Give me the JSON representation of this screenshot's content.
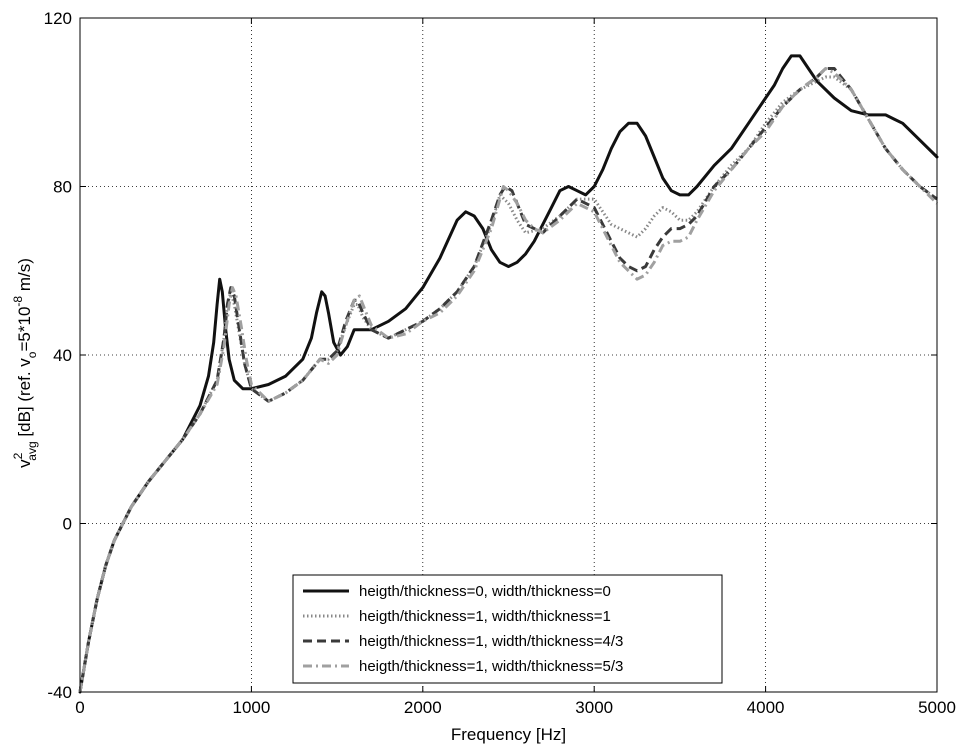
{
  "chart_data": {
    "type": "line",
    "title": "",
    "xlabel": "Frequency [Hz]",
    "ylabel": {
      "base": "v",
      "sup": "2",
      "sub": "avg",
      "mid": " [dB] (ref. v",
      "ref_sub": "o",
      "ref_eq": "=5*10",
      "ref_exp": "-8",
      "end": " m/s)"
    },
    "xlim": [
      0,
      5000
    ],
    "ylim": [
      -40,
      120
    ],
    "xticks": [
      "0",
      "1000",
      "2000",
      "3000",
      "4000",
      "5000"
    ],
    "yticks": [
      "-40",
      "0",
      "40",
      "80",
      "120"
    ],
    "grid": true,
    "legend_position": "bottom-center",
    "series": [
      {
        "name": "heigth/thickness=0, width/thickness=0",
        "color": "#111111",
        "dash": "solid",
        "x": [
          0,
          50,
          100,
          150,
          200,
          250,
          300,
          400,
          500,
          600,
          700,
          750,
          780,
          800,
          815,
          830,
          850,
          870,
          900,
          950,
          1000,
          1100,
          1200,
          1300,
          1350,
          1380,
          1410,
          1430,
          1450,
          1480,
          1520,
          1560,
          1600,
          1650,
          1700,
          1800,
          1900,
          2000,
          2100,
          2200,
          2250,
          2300,
          2350,
          2400,
          2450,
          2500,
          2550,
          2600,
          2650,
          2700,
          2750,
          2800,
          2850,
          2900,
          2950,
          3000,
          3050,
          3100,
          3150,
          3200,
          3250,
          3300,
          3350,
          3400,
          3450,
          3500,
          3550,
          3600,
          3700,
          3800,
          3900,
          4000,
          4050,
          4100,
          4150,
          4180,
          4200,
          4250,
          4300,
          4400,
          4500,
          4600,
          4700,
          4750,
          4800,
          4900,
          5000
        ],
        "y": [
          -40,
          -28,
          -18,
          -10,
          -4,
          0,
          4,
          10,
          15,
          20,
          28,
          35,
          43,
          52,
          58,
          55,
          46,
          39,
          34,
          32,
          32,
          33,
          35,
          39,
          44,
          50,
          55,
          54,
          50,
          43,
          40,
          42,
          46,
          46,
          46,
          48,
          51,
          56,
          63,
          72,
          74,
          73,
          70,
          65,
          62,
          61,
          62,
          64,
          67,
          71,
          75,
          79,
          80,
          79,
          78,
          80,
          84,
          89,
          93,
          95,
          95,
          92,
          87,
          82,
          79,
          78,
          78,
          80,
          85,
          89,
          95,
          101,
          104,
          108,
          111,
          111,
          111,
          108,
          105,
          101,
          98,
          97,
          97,
          96,
          95,
          91,
          87
        ]
      },
      {
        "name": "heigth/thickness=1, width/thickness=1",
        "color": "#888888",
        "dash": "dotted",
        "x": [
          0,
          50,
          100,
          150,
          200,
          250,
          300,
          400,
          500,
          600,
          700,
          800,
          840,
          860,
          880,
          900,
          930,
          960,
          1000,
          1100,
          1200,
          1300,
          1400,
          1450,
          1500,
          1550,
          1600,
          1620,
          1650,
          1700,
          1800,
          1900,
          2000,
          2100,
          2200,
          2300,
          2400,
          2450,
          2500,
          2550,
          2600,
          2700,
          2800,
          2900,
          3000,
          3100,
          3200,
          3250,
          3300,
          3350,
          3400,
          3450,
          3500,
          3550,
          3600,
          3700,
          3800,
          3900,
          4000,
          4100,
          4200,
          4300,
          4350,
          4400,
          4500,
          4600,
          4700,
          4800,
          4900,
          5000
        ],
        "y": [
          -40,
          -28,
          -18,
          -10,
          -4,
          0,
          4,
          10,
          15,
          20,
          26,
          34,
          44,
          52,
          55,
          52,
          45,
          38,
          32,
          29,
          31,
          34,
          39,
          39,
          41,
          47,
          52,
          52,
          49,
          46,
          44,
          46,
          48,
          51,
          55,
          61,
          71,
          78,
          76,
          72,
          69,
          70,
          73,
          77,
          77,
          71,
          69,
          68,
          70,
          73,
          75,
          74,
          72,
          72,
          74,
          80,
          85,
          89,
          95,
          100,
          103,
          105,
          106,
          106,
          103,
          96,
          89,
          84,
          80,
          77
        ]
      },
      {
        "name": "heigth/thickness=1, width/thickness=4/3",
        "color": "#3a3a3a",
        "dash": "dashed",
        "x": [
          0,
          50,
          100,
          150,
          200,
          250,
          300,
          400,
          500,
          600,
          700,
          800,
          840,
          860,
          880,
          900,
          930,
          960,
          1000,
          1100,
          1200,
          1300,
          1400,
          1450,
          1500,
          1550,
          1600,
          1620,
          1650,
          1700,
          1800,
          1900,
          2000,
          2100,
          2200,
          2300,
          2400,
          2450,
          2480,
          2520,
          2550,
          2600,
          2700,
          2800,
          2900,
          3000,
          3100,
          3150,
          3200,
          3250,
          3300,
          3350,
          3400,
          3450,
          3500,
          3550,
          3600,
          3700,
          3800,
          3900,
          4000,
          4100,
          4200,
          4300,
          4350,
          4400,
          4500,
          4600,
          4700,
          4800,
          4900,
          5000
        ],
        "y": [
          -40,
          -28,
          -18,
          -10,
          -4,
          0,
          4,
          10,
          15,
          20,
          26,
          34,
          44,
          52,
          56,
          54,
          46,
          38,
          32,
          29,
          31,
          34,
          39,
          39,
          41,
          48,
          53,
          53,
          50,
          46,
          44,
          46,
          48,
          51,
          55,
          61,
          72,
          78,
          80,
          79,
          76,
          71,
          69,
          73,
          77,
          75,
          67,
          63,
          61,
          60,
          61,
          65,
          68,
          70,
          70,
          71,
          73,
          80,
          84,
          89,
          94,
          99,
          103,
          106,
          108,
          108,
          103,
          96,
          89,
          84,
          80,
          77
        ]
      },
      {
        "name": "heigth/thickness=1, width/thickness=5/3",
        "color": "#a0a0a0",
        "dash": "dashdot",
        "x": [
          0,
          50,
          100,
          150,
          200,
          250,
          300,
          400,
          500,
          600,
          700,
          800,
          840,
          870,
          890,
          910,
          940,
          970,
          1000,
          1100,
          1200,
          1300,
          1400,
          1450,
          1500,
          1550,
          1600,
          1630,
          1660,
          1700,
          1800,
          1900,
          2000,
          2100,
          2200,
          2300,
          2400,
          2450,
          2470,
          2500,
          2550,
          2600,
          2650,
          2700,
          2800,
          2900,
          3000,
          3100,
          3150,
          3200,
          3250,
          3300,
          3350,
          3400,
          3450,
          3500,
          3550,
          3600,
          3700,
          3800,
          3900,
          4000,
          4100,
          4200,
          4300,
          4350,
          4400,
          4500,
          4600,
          4700,
          4800,
          4900,
          5000
        ],
        "y": [
          -40,
          -28,
          -18,
          -10,
          -4,
          0,
          4,
          10,
          15,
          20,
          26,
          33,
          42,
          52,
          56,
          54,
          47,
          39,
          33,
          29,
          31,
          34,
          39,
          38,
          40,
          47,
          53,
          54,
          51,
          47,
          44,
          45,
          48,
          50,
          54,
          60,
          70,
          77,
          80,
          79,
          76,
          72,
          70,
          69,
          72,
          76,
          74,
          66,
          62,
          60,
          58,
          59,
          62,
          66,
          67,
          67,
          68,
          72,
          79,
          84,
          89,
          93,
          99,
          103,
          106,
          108,
          107,
          103,
          96,
          89,
          84,
          80,
          76
        ]
      }
    ]
  }
}
